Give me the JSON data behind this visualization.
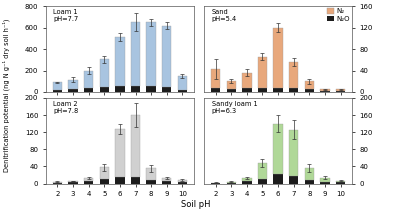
{
  "pH_values": [
    2,
    3,
    4,
    5,
    6,
    7,
    8,
    9,
    10
  ],
  "loam1": {
    "label": "Loam 1\npH=7.7",
    "N2_values": [
      75,
      90,
      165,
      255,
      460,
      595,
      595,
      570,
      125
    ],
    "N2O_values": [
      15,
      25,
      35,
      50,
      55,
      55,
      55,
      50,
      22
    ],
    "N2_err": [
      5,
      25,
      35,
      35,
      35,
      85,
      35,
      35,
      20
    ],
    "color_N2": "#a8c4e0",
    "color_N2O": "#1c1c1c",
    "ylim": [
      0,
      800
    ],
    "yticks": [
      0,
      200,
      400,
      600,
      800
    ]
  },
  "sand": {
    "label": "Sand\npH=5.4",
    "N2_values": [
      35,
      15,
      28,
      58,
      112,
      48,
      15,
      3,
      3
    ],
    "N2O_values": [
      8,
      5,
      8,
      8,
      8,
      8,
      5,
      2,
      2
    ],
    "N2_err": [
      18,
      4,
      6,
      6,
      8,
      8,
      5,
      1,
      1
    ],
    "color_N2": "#e8a87c",
    "color_N2O": "#1c1c1c",
    "ylim": [
      0,
      160
    ],
    "yticks": [
      0,
      40,
      80,
      120,
      160
    ]
  },
  "loam2": {
    "label": "Loam 2\npH=7.8",
    "N2_values": [
      2,
      3,
      8,
      28,
      112,
      145,
      28,
      8,
      5
    ],
    "N2O_values": [
      2,
      3,
      5,
      10,
      16,
      16,
      8,
      5,
      3
    ],
    "N2_err": [
      1,
      1,
      2,
      8,
      12,
      28,
      8,
      3,
      2
    ],
    "color_N2": "#d0d0d0",
    "color_N2O": "#1c1c1c",
    "ylim": [
      0,
      200
    ],
    "yticks": [
      0,
      40,
      80,
      120,
      160,
      200
    ]
  },
  "sandyloam1": {
    "label": "Sandy loam 1\npH=6.3",
    "N2_values": [
      1,
      2,
      8,
      38,
      118,
      108,
      28,
      10,
      4
    ],
    "N2O_values": [
      1,
      2,
      5,
      10,
      22,
      18,
      8,
      4,
      3
    ],
    "N2_err": [
      1,
      1,
      2,
      10,
      20,
      22,
      10,
      4,
      2
    ],
    "color_N2": "#b0d898",
    "color_N2O": "#1c1c1c",
    "ylim": [
      0,
      200
    ],
    "yticks": [
      0,
      40,
      80,
      120,
      160,
      200
    ]
  },
  "xlabel": "Soil pH",
  "ylabel": "Denitrification potential (ng N g⁻¹ dry soil h⁻¹)",
  "legend_N2": "N₂",
  "legend_N2O": "N₂O",
  "bar_width": 0.6,
  "background": "#ffffff",
  "tick_fontsize": 5.0,
  "label_fontsize": 5.5
}
